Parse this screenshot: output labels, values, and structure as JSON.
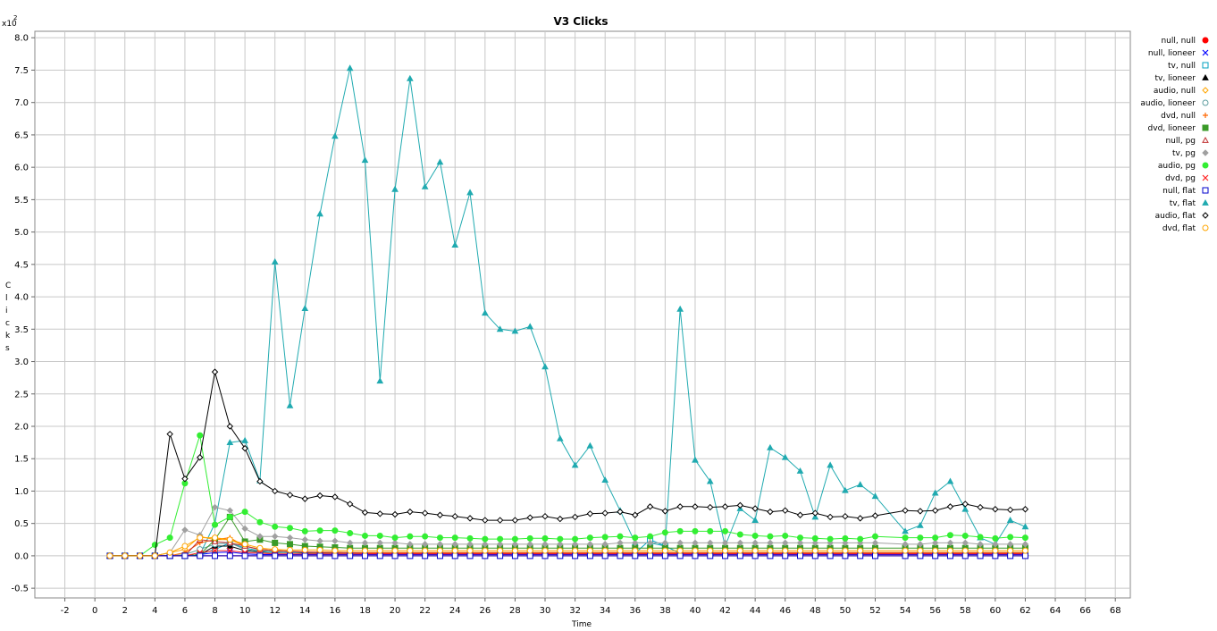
{
  "chart_data": {
    "type": "line",
    "title": "V3 Clicks",
    "xlabel": "Time",
    "ylabel": "Clicks",
    "y_multiplier_label": "x10",
    "y_multiplier_exp": "2",
    "xlim": [
      -4,
      69
    ],
    "ylim": [
      -0.65,
      8.1
    ],
    "x_ticks": [
      -2,
      0,
      2,
      4,
      6,
      8,
      10,
      12,
      14,
      16,
      18,
      20,
      22,
      24,
      26,
      28,
      30,
      32,
      34,
      36,
      38,
      40,
      42,
      44,
      46,
      48,
      50,
      52,
      54,
      56,
      58,
      60,
      62,
      64,
      66,
      68
    ],
    "y_ticks": [
      -0.5,
      0.0,
      0.5,
      1.0,
      1.5,
      2.0,
      2.5,
      3.0,
      3.5,
      4.0,
      4.5,
      5.0,
      5.5,
      6.0,
      6.5,
      7.0,
      7.5,
      8.0
    ],
    "y_tick_labels": [
      "-0.5",
      "0.0",
      "0.5",
      "1.0",
      "1.5",
      "2.0",
      "2.5",
      "3.0",
      "3.5",
      "4.0",
      "4.5",
      "5.0",
      "5.5",
      "6.0",
      "6.5",
      "7.0",
      "7.5",
      "8.0"
    ],
    "grid": true,
    "legend_position": "right",
    "x": [
      1,
      2,
      3,
      4,
      5,
      6,
      7,
      8,
      9,
      10,
      11,
      12,
      13,
      14,
      15,
      16,
      17,
      18,
      19,
      20,
      21,
      22,
      23,
      24,
      25,
      26,
      27,
      28,
      29,
      30,
      31,
      32,
      33,
      34,
      35,
      36,
      37,
      38,
      39,
      40,
      41,
      42,
      43,
      44,
      45,
      46,
      47,
      48,
      49,
      50,
      51,
      52,
      54,
      55,
      56,
      57,
      58,
      59,
      60,
      61,
      62
    ],
    "series": [
      {
        "name": "null, null",
        "color": "#ff0000",
        "marker": "circle-filled",
        "values": [
          0,
          0,
          0,
          0,
          0,
          0,
          0,
          0,
          0,
          0,
          0,
          0,
          0,
          0,
          0,
          0,
          0,
          0,
          0,
          0,
          0,
          0,
          0,
          0,
          0,
          0,
          0,
          0,
          0,
          0,
          0,
          0,
          0,
          0,
          0,
          0,
          0,
          0,
          0,
          0,
          0,
          0,
          0,
          0,
          0,
          0,
          0,
          0,
          0,
          0,
          0,
          0,
          0,
          0,
          0,
          0,
          0,
          0,
          0,
          0,
          0
        ]
      },
      {
        "name": "null, lioneer",
        "color": "#0000ff",
        "marker": "x",
        "values": [
          0,
          0,
          0,
          0,
          0,
          0,
          0.02,
          0.05,
          0.06,
          0.03,
          0.02,
          0.02,
          0.02,
          0.02,
          0.02,
          0.02,
          0.02,
          0.02,
          0.02,
          0.02,
          0.02,
          0.02,
          0.02,
          0.02,
          0.02,
          0.02,
          0.02,
          0.02,
          0.02,
          0.02,
          0.02,
          0.02,
          0.02,
          0.02,
          0.02,
          0.02,
          0.02,
          0.02,
          0.02,
          0.02,
          0.02,
          0.02,
          0.02,
          0.02,
          0.02,
          0.02,
          0.02,
          0.02,
          0.02,
          0.02,
          0.02,
          0.02,
          0.02,
          0.02,
          0.02,
          0.02,
          0.02,
          0.02,
          0.02,
          0.02,
          0.02
        ]
      },
      {
        "name": "tv, null",
        "color": "#00a0c0",
        "marker": "square-open",
        "values": [
          0,
          0,
          0,
          0,
          0,
          0,
          0.02,
          0.1,
          0.2,
          0.12,
          0.08,
          0.06,
          0.05,
          0.05,
          0.05,
          0.05,
          0.05,
          0.04,
          0.04,
          0.04,
          0.04,
          0.04,
          0.04,
          0.04,
          0.04,
          0.04,
          0.04,
          0.04,
          0.04,
          0.04,
          0.04,
          0.04,
          0.04,
          0.04,
          0.04,
          0.04,
          0.25,
          0.15,
          0.04,
          0.04,
          0.04,
          0.04,
          0.04,
          0.04,
          0.04,
          0.04,
          0.04,
          0.04,
          0.04,
          0.04,
          0.04,
          0.04,
          0.04,
          0.04,
          0.04,
          0.04,
          0.04,
          0.04,
          0.04,
          0.04,
          0.04
        ]
      },
      {
        "name": "tv, lioneer",
        "color": "#000000",
        "marker": "triangle-filled",
        "values": [
          0,
          0,
          0,
          0,
          0,
          0,
          0.02,
          0.15,
          0.15,
          0.08,
          0.06,
          0.05,
          0.05,
          0.05,
          0.05,
          0.04,
          0.04,
          0.04,
          0.04,
          0.04,
          0.04,
          0.04,
          0.04,
          0.04,
          0.04,
          0.04,
          0.04,
          0.04,
          0.04,
          0.04,
          0.04,
          0.04,
          0.04,
          0.04,
          0.04,
          0.04,
          0.04,
          0.04,
          0.04,
          0.04,
          0.04,
          0.04,
          0.04,
          0.04,
          0.04,
          0.04,
          0.04,
          0.04,
          0.04,
          0.04,
          0.04,
          0.04,
          0.04,
          0.04,
          0.04,
          0.04,
          0.04,
          0.04,
          0.04,
          0.04,
          0.04
        ]
      },
      {
        "name": "audio, null",
        "color": "#ffa500",
        "marker": "diamond-open",
        "values": [
          0,
          0,
          0,
          0,
          0.05,
          0.1,
          0.3,
          0.25,
          0.25,
          0.15,
          0.1,
          0.08,
          0.07,
          0.06,
          0.06,
          0.06,
          0.05,
          0.05,
          0.05,
          0.05,
          0.05,
          0.05,
          0.05,
          0.05,
          0.05,
          0.05,
          0.05,
          0.05,
          0.05,
          0.05,
          0.05,
          0.05,
          0.05,
          0.05,
          0.05,
          0.05,
          0.05,
          0.05,
          0.05,
          0.05,
          0.05,
          0.05,
          0.05,
          0.05,
          0.05,
          0.05,
          0.05,
          0.05,
          0.05,
          0.05,
          0.05,
          0.05,
          0.05,
          0.05,
          0.05,
          0.05,
          0.05,
          0.05,
          0.05,
          0.05,
          0.05
        ]
      },
      {
        "name": "audio, lioneer",
        "color": "#5f9ea0",
        "marker": "circle-open",
        "values": [
          0,
          0,
          0,
          0,
          0,
          0.02,
          0.1,
          0.18,
          0.2,
          0.1,
          0.07,
          0.05,
          0.05,
          0.04,
          0.04,
          0.04,
          0.04,
          0.04,
          0.04,
          0.04,
          0.04,
          0.04,
          0.04,
          0.04,
          0.04,
          0.04,
          0.04,
          0.04,
          0.04,
          0.04,
          0.04,
          0.04,
          0.04,
          0.04,
          0.04,
          0.04,
          0.04,
          0.04,
          0.04,
          0.04,
          0.04,
          0.04,
          0.04,
          0.04,
          0.04,
          0.04,
          0.04,
          0.04,
          0.04,
          0.04,
          0.04,
          0.04,
          0.04,
          0.04,
          0.04,
          0.04,
          0.04,
          0.04,
          0.04,
          0.04,
          0.04
        ]
      },
      {
        "name": "dvd, null",
        "color": "#ff6600",
        "marker": "plus",
        "values": [
          0,
          0,
          0,
          0,
          0,
          0.05,
          0.2,
          0.25,
          0.28,
          0.15,
          0.1,
          0.08,
          0.07,
          0.06,
          0.06,
          0.05,
          0.05,
          0.05,
          0.05,
          0.05,
          0.05,
          0.05,
          0.05,
          0.05,
          0.05,
          0.05,
          0.05,
          0.05,
          0.05,
          0.05,
          0.05,
          0.05,
          0.05,
          0.05,
          0.05,
          0.05,
          0.05,
          0.05,
          0.05,
          0.05,
          0.05,
          0.05,
          0.05,
          0.05,
          0.05,
          0.05,
          0.05,
          0.05,
          0.05,
          0.05,
          0.05,
          0.05,
          0.05,
          0.05,
          0.05,
          0.05,
          0.05,
          0.05,
          0.05,
          0.05,
          0.05
        ]
      },
      {
        "name": "dvd, lioneer",
        "color": "#3a9a28",
        "marker": "square-filled",
        "values": [
          0,
          0,
          0,
          0,
          0,
          0,
          0.02,
          0.25,
          0.6,
          0.22,
          0.25,
          0.2,
          0.18,
          0.15,
          0.14,
          0.13,
          0.12,
          0.12,
          0.12,
          0.12,
          0.12,
          0.12,
          0.12,
          0.12,
          0.12,
          0.12,
          0.12,
          0.12,
          0.12,
          0.12,
          0.12,
          0.12,
          0.12,
          0.12,
          0.12,
          0.12,
          0.12,
          0.12,
          0.12,
          0.12,
          0.12,
          0.12,
          0.12,
          0.12,
          0.12,
          0.12,
          0.12,
          0.12,
          0.12,
          0.12,
          0.12,
          0.12,
          0.12,
          0.12,
          0.12,
          0.12,
          0.12,
          0.12,
          0.12,
          0.12,
          0.12
        ]
      },
      {
        "name": "null, pg",
        "color": "#c03030",
        "marker": "triangle-open",
        "values": [
          0,
          0,
          0,
          0,
          0,
          0,
          0.25,
          0.22,
          0.2,
          0.15,
          0.1,
          0.08,
          0.07,
          0.06,
          0.05,
          0.05,
          0.05,
          0.04,
          0.04,
          0.04,
          0.04,
          0.04,
          0.04,
          0.04,
          0.04,
          0.04,
          0.04,
          0.04,
          0.04,
          0.04,
          0.04,
          0.04,
          0.04,
          0.04,
          0.04,
          0.04,
          0.04,
          0.04,
          0.04,
          0.04,
          0.04,
          0.04,
          0.04,
          0.04,
          0.04,
          0.04,
          0.04,
          0.04,
          0.04,
          0.04,
          0.04,
          0.04,
          0.04,
          0.04,
          0.04,
          0.04,
          0.04,
          0.04,
          0.04,
          0.04,
          0.04
        ]
      },
      {
        "name": "tv, pg",
        "color": "#a0a0a0",
        "marker": "diamond-filled",
        "values": [
          0,
          0,
          0,
          0,
          0.05,
          0.4,
          0.32,
          0.75,
          0.7,
          0.42,
          0.3,
          0.3,
          0.28,
          0.25,
          0.23,
          0.23,
          0.2,
          0.2,
          0.2,
          0.2,
          0.18,
          0.18,
          0.18,
          0.18,
          0.18,
          0.18,
          0.18,
          0.18,
          0.18,
          0.18,
          0.18,
          0.18,
          0.18,
          0.18,
          0.2,
          0.2,
          0.2,
          0.2,
          0.2,
          0.2,
          0.2,
          0.2,
          0.2,
          0.2,
          0.2,
          0.2,
          0.2,
          0.2,
          0.2,
          0.2,
          0.2,
          0.2,
          0.18,
          0.18,
          0.2,
          0.2,
          0.2,
          0.18,
          0.18,
          0.18,
          0.18
        ]
      },
      {
        "name": "audio, pg",
        "color": "#33ee33",
        "marker": "circle-filled",
        "values": [
          0,
          0,
          0,
          0.17,
          0.28,
          1.12,
          1.86,
          0.48,
          0.6,
          0.68,
          0.52,
          0.45,
          0.43,
          0.38,
          0.39,
          0.39,
          0.35,
          0.31,
          0.31,
          0.28,
          0.3,
          0.3,
          0.28,
          0.28,
          0.27,
          0.26,
          0.26,
          0.26,
          0.27,
          0.27,
          0.26,
          0.26,
          0.28,
          0.29,
          0.3,
          0.28,
          0.3,
          0.36,
          0.38,
          0.38,
          0.38,
          0.38,
          0.33,
          0.31,
          0.3,
          0.31,
          0.28,
          0.27,
          0.26,
          0.27,
          0.26,
          0.3,
          0.28,
          0.28,
          0.28,
          0.32,
          0.31,
          0.29,
          0.27,
          0.29,
          0.28
        ]
      },
      {
        "name": "dvd, pg",
        "color": "#ff2020",
        "marker": "x",
        "values": [
          0,
          0,
          0,
          0,
          0,
          0,
          0.05,
          0.08,
          0.08,
          0.05,
          0.04,
          0.03,
          0.03,
          0.03,
          0.03,
          0.03,
          0.03,
          0.03,
          0.03,
          0.03,
          0.03,
          0.03,
          0.03,
          0.03,
          0.03,
          0.03,
          0.03,
          0.03,
          0.03,
          0.03,
          0.03,
          0.03,
          0.03,
          0.03,
          0.03,
          0.03,
          0.03,
          0.03,
          0.03,
          0.03,
          0.03,
          0.03,
          0.03,
          0.03,
          0.03,
          0.03,
          0.03,
          0.03,
          0.03,
          0.03,
          0.03,
          0.03,
          0.03,
          0.03,
          0.03,
          0.03,
          0.03,
          0.03,
          0.03,
          0.03,
          0.03
        ]
      },
      {
        "name": "null, flat",
        "color": "#0000cc",
        "marker": "square-open",
        "values": [
          0,
          0,
          0,
          0,
          0,
          0,
          0,
          0,
          0,
          0,
          0,
          0,
          0,
          0,
          0,
          0,
          0,
          0,
          0,
          0,
          0,
          0,
          0,
          0,
          0,
          0,
          0,
          0,
          0,
          0,
          0,
          0,
          0,
          0,
          0,
          0,
          0,
          0,
          0,
          0,
          0,
          0,
          0,
          0,
          0,
          0,
          0,
          0,
          0,
          0,
          0,
          0,
          0,
          0,
          0,
          0,
          0,
          0,
          0,
          0,
          0
        ]
      },
      {
        "name": "tv, flat",
        "color": "#20aab0",
        "marker": "triangle-filled",
        "values": [
          0,
          0,
          0,
          0,
          0,
          0,
          0.02,
          0.5,
          1.75,
          1.78,
          1.16,
          4.54,
          2.32,
          3.82,
          5.28,
          6.48,
          7.53,
          6.11,
          2.7,
          5.66,
          7.37,
          5.7,
          6.08,
          4.8,
          5.61,
          3.75,
          3.5,
          3.47,
          3.54,
          2.92,
          1.81,
          1.4,
          1.7,
          1.17,
          0.7,
          0.2,
          0.2,
          0.15,
          3.81,
          1.48,
          1.15,
          0.15,
          0.73,
          0.55,
          1.67,
          1.52,
          1.31,
          0.6,
          1.4,
          1.01,
          1.1,
          0.92,
          0.38,
          0.47,
          0.97,
          1.15,
          0.72,
          0.28,
          0.18,
          0.55,
          0.45
        ]
      },
      {
        "name": "audio, flat",
        "color": "#000000",
        "marker": "diamond-open",
        "values": [
          0,
          0,
          0,
          0,
          1.88,
          1.19,
          1.52,
          2.84,
          2.0,
          1.66,
          1.15,
          1.0,
          0.94,
          0.88,
          0.93,
          0.91,
          0.8,
          0.67,
          0.65,
          0.64,
          0.68,
          0.66,
          0.63,
          0.61,
          0.58,
          0.55,
          0.55,
          0.55,
          0.59,
          0.61,
          0.57,
          0.6,
          0.65,
          0.66,
          0.68,
          0.63,
          0.76,
          0.69,
          0.76,
          0.76,
          0.75,
          0.76,
          0.78,
          0.73,
          0.68,
          0.7,
          0.63,
          0.66,
          0.6,
          0.61,
          0.58,
          0.62,
          0.7,
          0.69,
          0.7,
          0.76,
          0.8,
          0.75,
          0.72,
          0.71,
          0.72
        ]
      },
      {
        "name": "dvd, flat",
        "color": "#ffa500",
        "marker": "circle-open",
        "values": [
          0,
          0,
          0,
          0,
          0.05,
          0.15,
          0.28,
          0.28,
          0.25,
          0.18,
          0.12,
          0.1,
          0.09,
          0.09,
          0.09,
          0.08,
          0.08,
          0.08,
          0.08,
          0.08,
          0.08,
          0.08,
          0.08,
          0.08,
          0.08,
          0.08,
          0.08,
          0.08,
          0.08,
          0.08,
          0.08,
          0.08,
          0.08,
          0.08,
          0.08,
          0.08,
          0.08,
          0.08,
          0.08,
          0.08,
          0.08,
          0.08,
          0.08,
          0.08,
          0.08,
          0.08,
          0.08,
          0.08,
          0.08,
          0.08,
          0.08,
          0.08,
          0.08,
          0.08,
          0.08,
          0.08,
          0.08,
          0.08,
          0.08,
          0.08,
          0.08
        ]
      }
    ]
  }
}
